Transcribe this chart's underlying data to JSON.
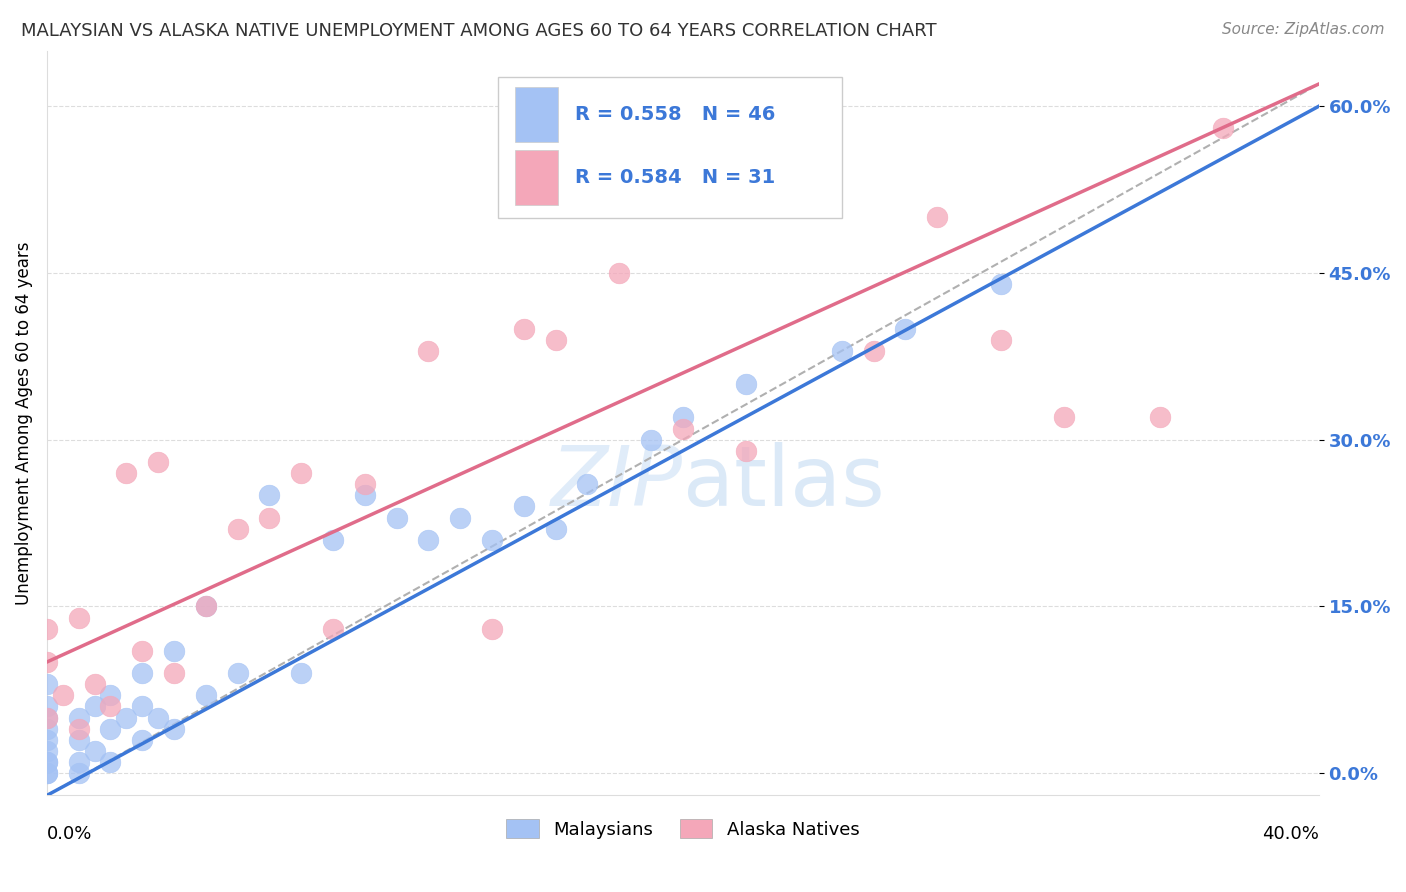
{
  "title": "MALAYSIAN VS ALASKA NATIVE UNEMPLOYMENT AMONG AGES 60 TO 64 YEARS CORRELATION CHART",
  "source": "Source: ZipAtlas.com",
  "ylabel": "Unemployment Among Ages 60 to 64 years",
  "xlim": [
    0.0,
    0.4
  ],
  "ylim": [
    -0.02,
    0.65
  ],
  "yticks": [
    0.0,
    0.15,
    0.3,
    0.45,
    0.6
  ],
  "ytick_labels": [
    "0.0%",
    "15.0%",
    "30.0%",
    "45.0%",
    "60.0%"
  ],
  "legend_r1": "R = 0.558",
  "legend_n1": "N = 46",
  "legend_r2": "R = 0.584",
  "legend_n2": "N = 31",
  "legend_label1": "Malaysians",
  "legend_label2": "Alaska Natives",
  "blue_color": "#a4c2f4",
  "pink_color": "#f4a7b9",
  "blue_line_color": "#3c78d8",
  "pink_line_color": "#e06c8a",
  "gray_dash_color": "#b0b0b0",
  "text_color": "#3c78d8",
  "malaysians_x": [
    0.0,
    0.0,
    0.0,
    0.0,
    0.0,
    0.0,
    0.0,
    0.0,
    0.0,
    0.0,
    0.01,
    0.01,
    0.01,
    0.01,
    0.015,
    0.015,
    0.02,
    0.02,
    0.02,
    0.025,
    0.03,
    0.03,
    0.035,
    0.04,
    0.05,
    0.05,
    0.07,
    0.08,
    0.1,
    0.12,
    0.13,
    0.14,
    0.15,
    0.17,
    0.19,
    0.2,
    0.22,
    0.25,
    0.27,
    0.3,
    0.03,
    0.04,
    0.06,
    0.09,
    0.11,
    0.16
  ],
  "malaysians_y": [
    0.0,
    0.0,
    0.01,
    0.01,
    0.02,
    0.03,
    0.04,
    0.05,
    0.06,
    0.08,
    0.0,
    0.01,
    0.03,
    0.05,
    0.02,
    0.06,
    0.01,
    0.04,
    0.07,
    0.05,
    0.03,
    0.06,
    0.05,
    0.04,
    0.07,
    0.15,
    0.25,
    0.09,
    0.25,
    0.21,
    0.23,
    0.21,
    0.24,
    0.26,
    0.3,
    0.32,
    0.35,
    0.38,
    0.4,
    0.44,
    0.09,
    0.11,
    0.09,
    0.21,
    0.23,
    0.22
  ],
  "alaska_x": [
    0.0,
    0.0,
    0.0,
    0.005,
    0.01,
    0.01,
    0.015,
    0.02,
    0.025,
    0.03,
    0.035,
    0.04,
    0.05,
    0.06,
    0.07,
    0.08,
    0.1,
    0.12,
    0.14,
    0.16,
    0.18,
    0.2,
    0.22,
    0.26,
    0.28,
    0.3,
    0.32,
    0.35,
    0.37,
    0.09,
    0.15
  ],
  "alaska_y": [
    0.05,
    0.1,
    0.13,
    0.07,
    0.04,
    0.14,
    0.08,
    0.06,
    0.27,
    0.11,
    0.28,
    0.09,
    0.15,
    0.22,
    0.23,
    0.27,
    0.26,
    0.38,
    0.13,
    0.39,
    0.45,
    0.31,
    0.29,
    0.38,
    0.5,
    0.39,
    0.32,
    0.32,
    0.58,
    0.13,
    0.4
  ],
  "blue_intercept": -0.02,
  "blue_slope": 1.55,
  "pink_intercept": 0.1,
  "pink_slope": 1.3,
  "gray_slope": 1.6,
  "gray_intercept": -0.02
}
